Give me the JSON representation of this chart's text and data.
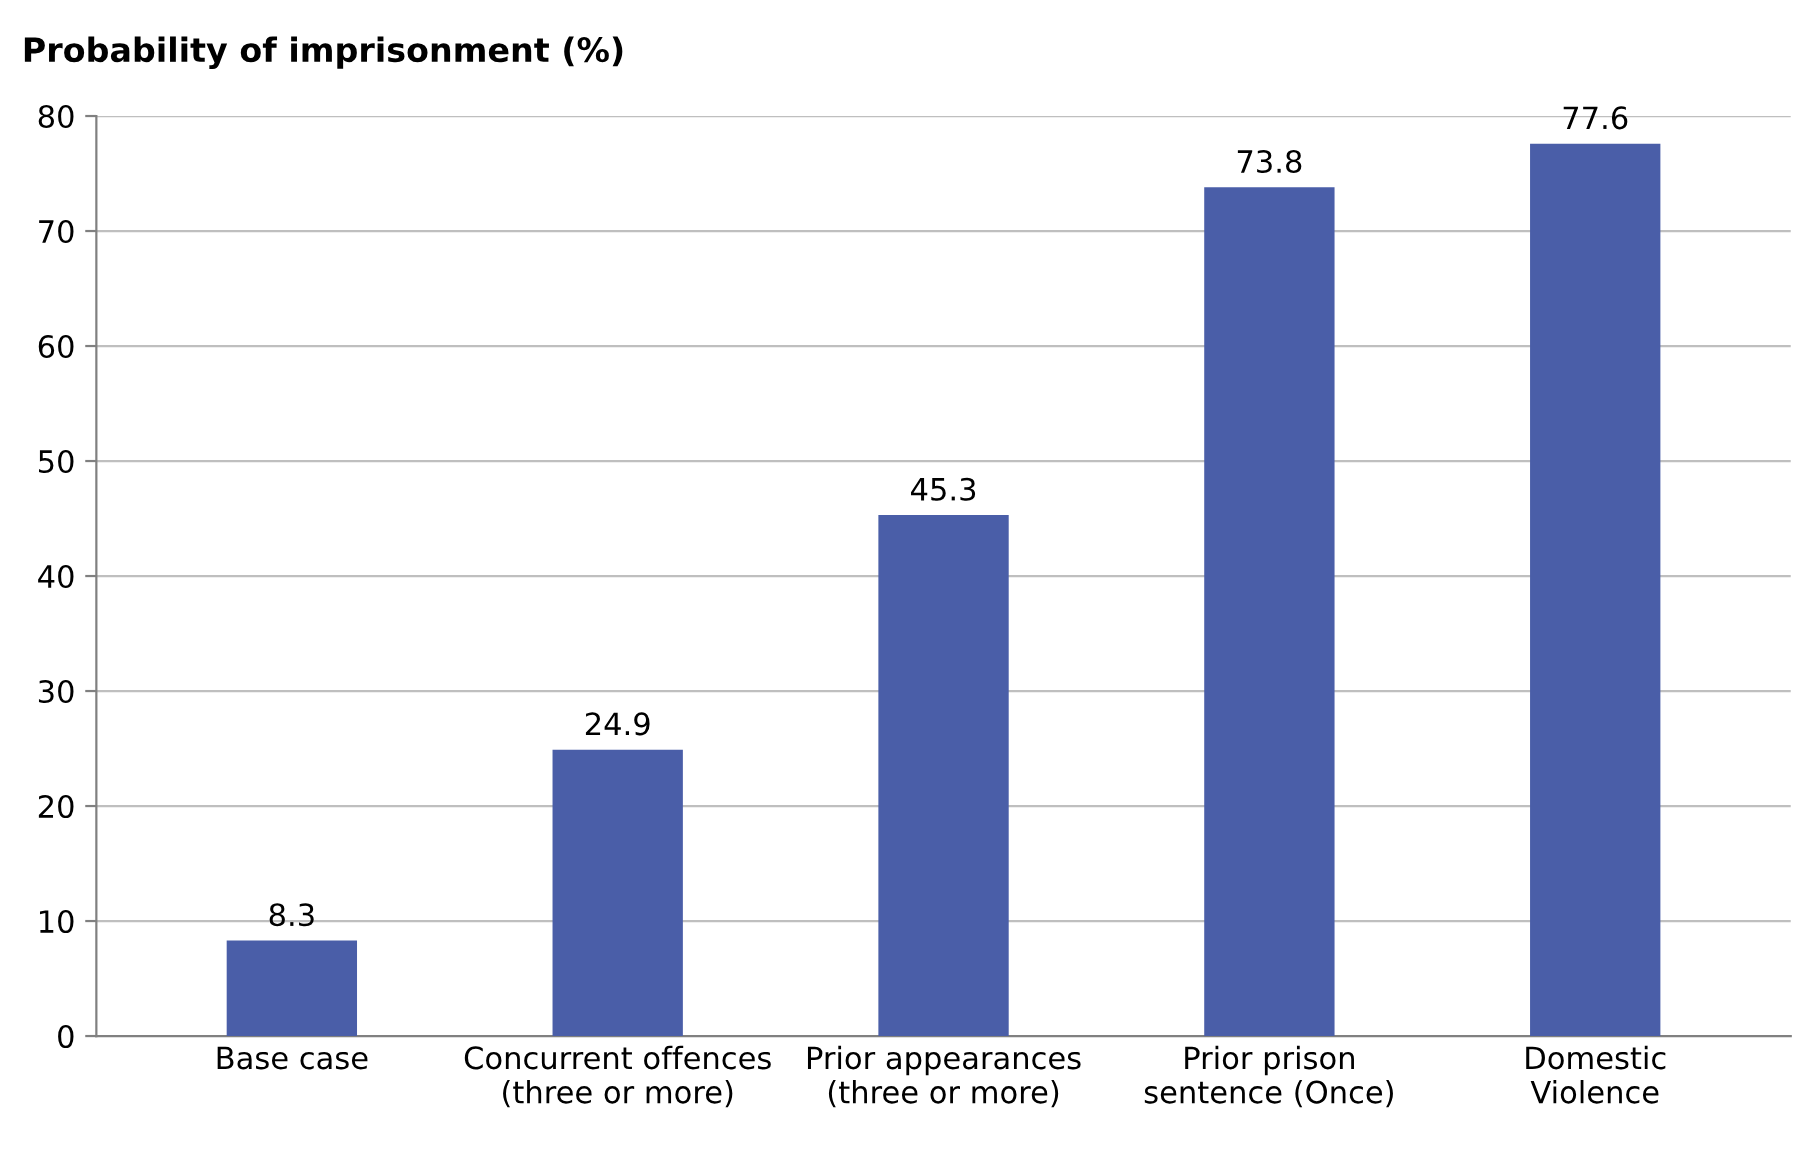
{
  "chart_data": {
    "type": "bar",
    "title": "Probability of imprisonment (%)",
    "categories": [
      "Base case",
      "Concurrent offences\n(three or more)",
      "Prior appearances\n(three or more)",
      "Prior prison\nsentence (Once)",
      "Domestic\nViolence"
    ],
    "values": [
      8.3,
      24.9,
      45.3,
      73.8,
      77.6
    ],
    "color": "#4a5ea8",
    "ylim": [
      0,
      80
    ],
    "yticks": [
      0,
      10,
      20,
      30,
      40,
      50,
      60,
      70,
      80
    ],
    "grid": "y",
    "data_labels": true
  }
}
